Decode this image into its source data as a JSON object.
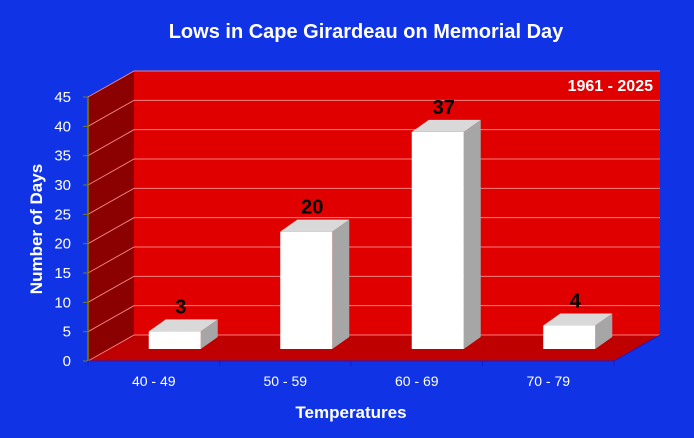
{
  "chart_data": {
    "type": "bar",
    "title": "Lows in Cape Girardeau on Memorial Day",
    "annotation": "1961 - 2025",
    "xlabel": "Temperatures",
    "ylabel": "Number of Days",
    "categories": [
      "40 - 49",
      "50 - 59",
      "60 - 69",
      "70 - 79"
    ],
    "values": [
      3,
      20,
      37,
      4
    ],
    "ylim": [
      0,
      45
    ],
    "yticks": [
      0,
      5,
      10,
      15,
      20,
      25,
      30,
      35,
      40,
      45
    ],
    "grid": true,
    "data_labels": true,
    "three_d": true
  },
  "colors": {
    "background": "#1133e6",
    "back_wall": "#e00000",
    "side_wall": "#8b0000",
    "floor": "#bf0000",
    "gridline": "#f08080",
    "bar_front": "#ffffff",
    "bar_top": "#d9d9d9",
    "bar_side": "#a6a6a6",
    "axis_text": "#ffffff",
    "data_label_text": "#000000"
  }
}
